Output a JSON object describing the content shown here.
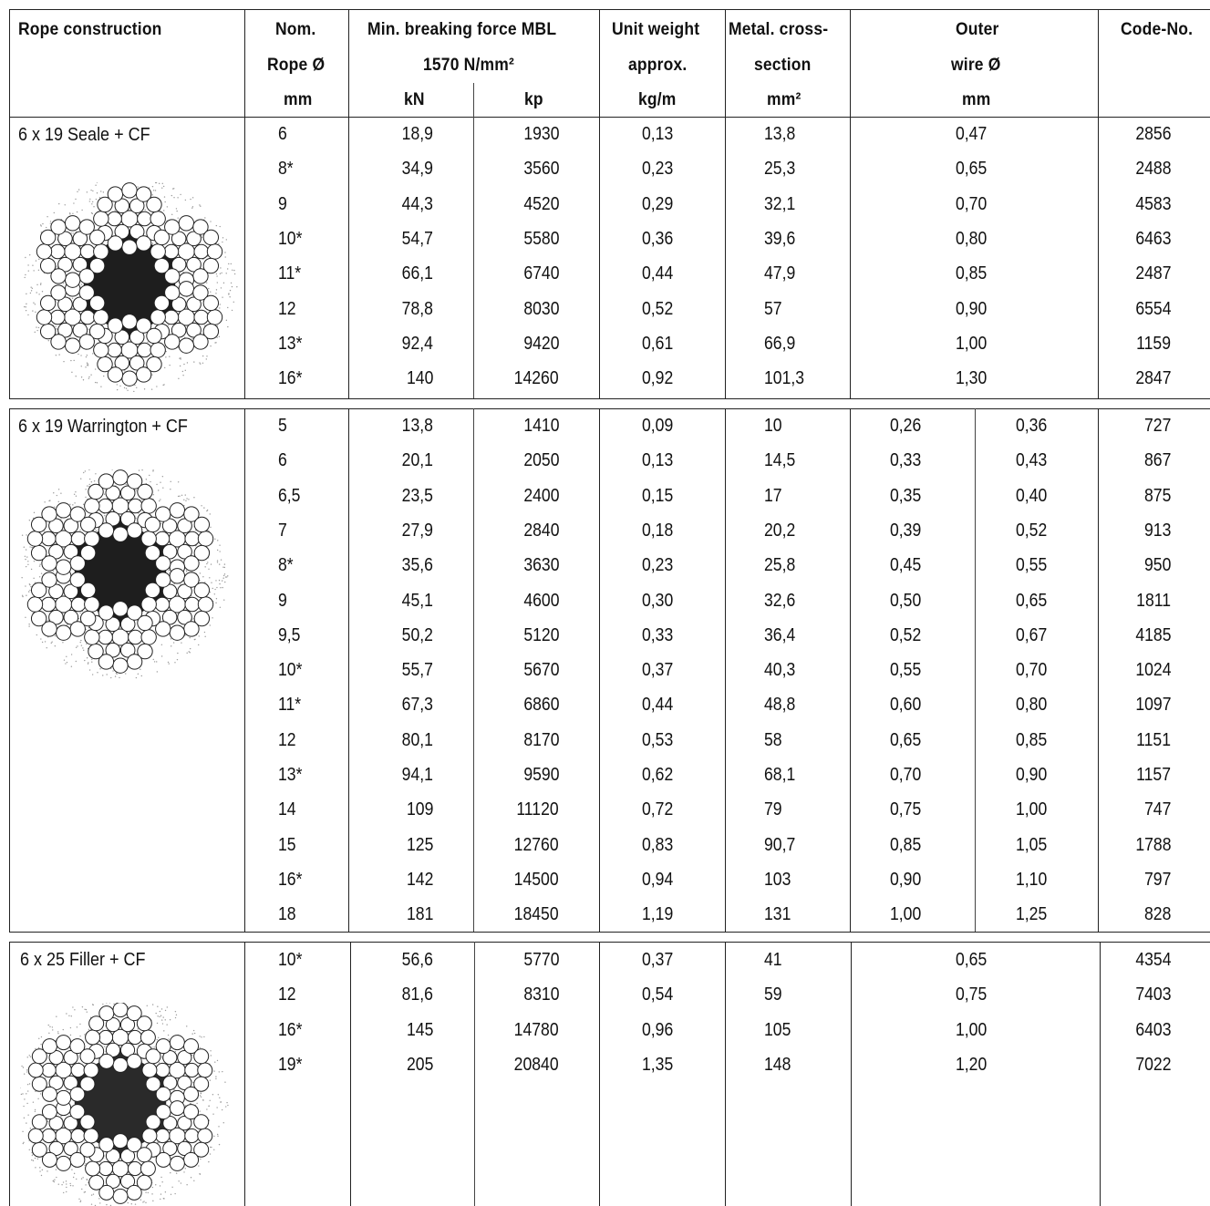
{
  "header": {
    "col1": "Rope construction",
    "col2": [
      "Nom.",
      "Rope Ø",
      "mm"
    ],
    "col3_top": "Min. breaking force MBL",
    "col3_mid": "1570 N/mm²",
    "col3_kn": "kN",
    "col3_kp": "kp",
    "col4": [
      "Unit weight",
      "approx.",
      "kg/m"
    ],
    "col5": [
      "Metal. cross-",
      "section",
      "mm²"
    ],
    "col6": [
      "Outer",
      "wire Ø",
      "mm"
    ],
    "col7": "Code-No."
  },
  "sections": [
    {
      "label": "6 x 19 Seale + CF",
      "split_wire": false,
      "rows": [
        {
          "d": "6",
          "kn": "18,9",
          "kp": "1930",
          "w": "0,13",
          "s": "13,8",
          "o1": "0,47",
          "o2": "",
          "code": "2856"
        },
        {
          "d": "8*",
          "kn": "34,9",
          "kp": "3560",
          "w": "0,23",
          "s": "25,3",
          "o1": "0,65",
          "o2": "",
          "code": "2488"
        },
        {
          "d": "9",
          "kn": "44,3",
          "kp": "4520",
          "w": "0,29",
          "s": "32,1",
          "o1": "0,70",
          "o2": "",
          "code": "4583"
        },
        {
          "d": "10*",
          "kn": "54,7",
          "kp": "5580",
          "w": "0,36",
          "s": "39,6",
          "o1": "0,80",
          "o2": "",
          "code": "6463"
        },
        {
          "d": "11*",
          "kn": "66,1",
          "kp": "6740",
          "w": "0,44",
          "s": "47,9",
          "o1": "0,85",
          "o2": "",
          "code": "2487"
        },
        {
          "d": "12",
          "kn": "78,8",
          "kp": "8030",
          "w": "0,52",
          "s": "57",
          "o1": "0,90",
          "o2": "",
          "code": "6554"
        },
        {
          "d": "13*",
          "kn": "92,4",
          "kp": "9420",
          "w": "0,61",
          "s": "66,9",
          "o1": "1,00",
          "o2": "",
          "code": "1159"
        },
        {
          "d": "16*",
          "kn": "140",
          "kp": "14260",
          "w": "0,92",
          "s": "101,3",
          "o1": "1,30",
          "o2": "",
          "code": "2847"
        }
      ]
    },
    {
      "label": "6 x 19 Warrington + CF",
      "split_wire": true,
      "rows": [
        {
          "d": "5",
          "kn": "13,8",
          "kp": "1410",
          "w": "0,09",
          "s": "10",
          "o1": "0,26",
          "o2": "0,36",
          "code": "727"
        },
        {
          "d": "6",
          "kn": "20,1",
          "kp": "2050",
          "w": "0,13",
          "s": "14,5",
          "o1": "0,33",
          "o2": "0,43",
          "code": "867"
        },
        {
          "d": "6,5",
          "kn": "23,5",
          "kp": "2400",
          "w": "0,15",
          "s": "17",
          "o1": "0,35",
          "o2": "0,40",
          "code": "875"
        },
        {
          "d": "7",
          "kn": "27,9",
          "kp": "2840",
          "w": "0,18",
          "s": "20,2",
          "o1": "0,39",
          "o2": "0,52",
          "code": "913"
        },
        {
          "d": "8*",
          "kn": "35,6",
          "kp": "3630",
          "w": "0,23",
          "s": "25,8",
          "o1": "0,45",
          "o2": "0,55",
          "code": "950"
        },
        {
          "d": "9",
          "kn": "45,1",
          "kp": "4600",
          "w": "0,30",
          "s": "32,6",
          "o1": "0,50",
          "o2": "0,65",
          "code": "1811"
        },
        {
          "d": "9,5",
          "kn": "50,2",
          "kp": "5120",
          "w": "0,33",
          "s": "36,4",
          "o1": "0,52",
          "o2": "0,67",
          "code": "4185"
        },
        {
          "d": "10*",
          "kn": "55,7",
          "kp": "5670",
          "w": "0,37",
          "s": "40,3",
          "o1": "0,55",
          "o2": "0,70",
          "code": "1024"
        },
        {
          "d": "11*",
          "kn": "67,3",
          "kp": "6860",
          "w": "0,44",
          "s": "48,8",
          "o1": "0,60",
          "o2": "0,80",
          "code": "1097"
        },
        {
          "d": "12",
          "kn": "80,1",
          "kp": "8170",
          "w": "0,53",
          "s": "58",
          "o1": "0,65",
          "o2": "0,85",
          "code": "1151"
        },
        {
          "d": "13*",
          "kn": "94,1",
          "kp": "9590",
          "w": "0,62",
          "s": "68,1",
          "o1": "0,70",
          "o2": "0,90",
          "code": "1157"
        },
        {
          "d": "14",
          "kn": "109",
          "kp": "11120",
          "w": "0,72",
          "s": "79",
          "o1": "0,75",
          "o2": "1,00",
          "code": "747"
        },
        {
          "d": "15",
          "kn": "125",
          "kp": "12760",
          "w": "0,83",
          "s": "90,7",
          "o1": "0,85",
          "o2": "1,05",
          "code": "1788"
        },
        {
          "d": "16*",
          "kn": "142",
          "kp": "14500",
          "w": "0,94",
          "s": "103",
          "o1": "0,90",
          "o2": "1,10",
          "code": "797"
        },
        {
          "d": "18",
          "kn": "181",
          "kp": "18450",
          "w": "1,19",
          "s": "131",
          "o1": "1,00",
          "o2": "1,25",
          "code": "828"
        }
      ]
    },
    {
      "label": "6 x 25 Filler + CF",
      "split_wire": false,
      "rows": [
        {
          "d": "10*",
          "kn": "56,6",
          "kp": "5770",
          "w": "0,37",
          "s": "41",
          "o1": "0,65",
          "o2": "",
          "code": "4354"
        },
        {
          "d": "12",
          "kn": "81,6",
          "kp": "8310",
          "w": "0,54",
          "s": "59",
          "o1": "0,75",
          "o2": "",
          "code": "7403"
        },
        {
          "d": "16*",
          "kn": "145",
          "kp": "14780",
          "w": "0,96",
          "s": "105",
          "o1": "1,00",
          "o2": "",
          "code": "6403"
        },
        {
          "d": "19*",
          "kn": "205",
          "kp": "20840",
          "w": "1,35",
          "s": "148",
          "o1": "1,20",
          "o2": "",
          "code": "7022"
        }
      ]
    }
  ],
  "figures": [
    {
      "icon": "seale-rope-cross-section-icon"
    },
    {
      "icon": "warrington-rope-cross-section-icon"
    },
    {
      "icon": "filler-rope-cross-section-icon"
    }
  ]
}
